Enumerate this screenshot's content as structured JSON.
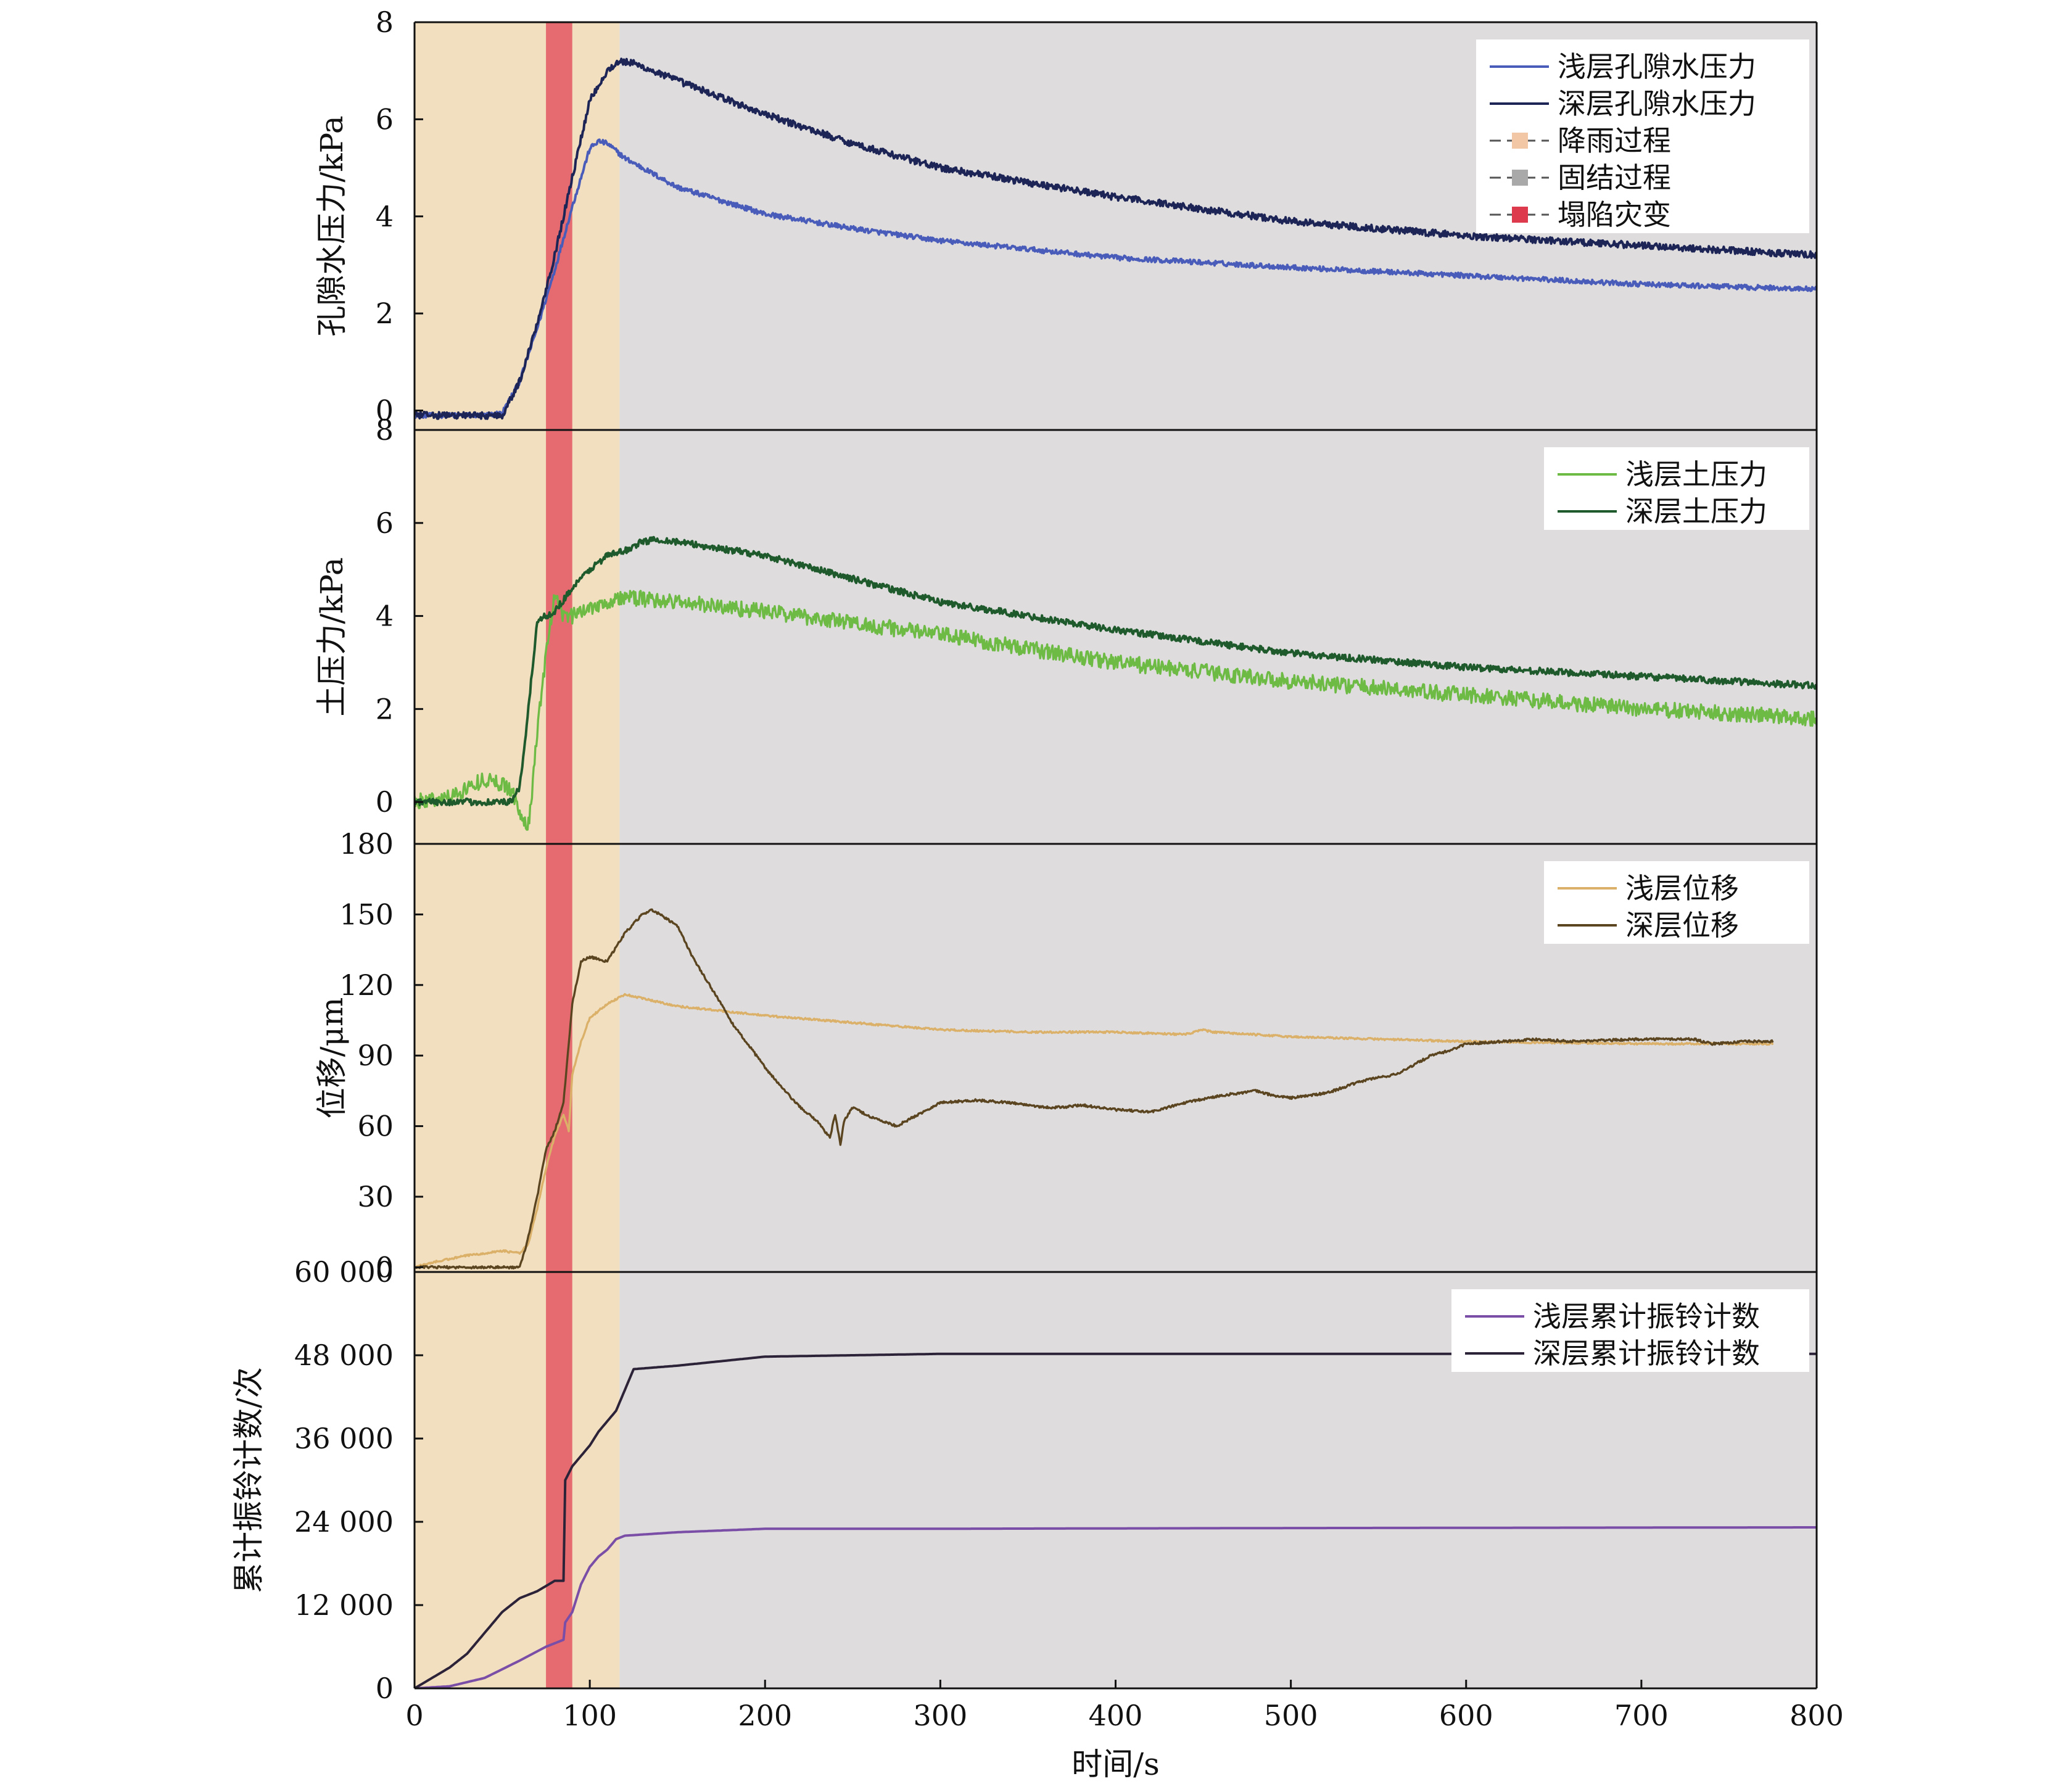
{
  "shared_x": {
    "label": "时间/s",
    "lim": [
      0,
      800
    ],
    "ticks": [
      0,
      100,
      200,
      300,
      400,
      500,
      600,
      700,
      800
    ]
  },
  "phases": {
    "rain_end": 117,
    "collapse": [
      75,
      90
    ],
    "colors": {
      "rain": "#f2dfc0",
      "consolidation": "#dedcdd",
      "collapse": "#e56b71"
    }
  },
  "chart_data": [
    {
      "type": "line",
      "ylabel": "孔隙水压力/kPa",
      "ylim": [
        -0.4,
        8
      ],
      "yticks": [
        0,
        2,
        4,
        6,
        8
      ],
      "ytick_labels": [
        "0",
        "2",
        "4",
        "6",
        "8"
      ],
      "legend": {
        "placement": "top-right",
        "entries": [
          {
            "label": "浅层孔隙水压力",
            "kind": "line",
            "color": "#4a5cba"
          },
          {
            "label": "深层孔隙水压力",
            "kind": "line",
            "color": "#1d2456"
          },
          {
            "label": "降雨过程",
            "kind": "patch",
            "color": "#f1c7a6"
          },
          {
            "label": "固结过程",
            "kind": "patch",
            "color": "#a9a9a9"
          },
          {
            "label": "塌陷灾变",
            "kind": "patch",
            "color": "#dd3a4d"
          }
        ]
      },
      "series": [
        {
          "name": "浅层孔隙水压力",
          "color": "#4a5cba",
          "noise": 0.05,
          "x": [
            0,
            40,
            50,
            60,
            70,
            80,
            90,
            100,
            105,
            110,
            120,
            150,
            200,
            250,
            300,
            400,
            500,
            600,
            700,
            800
          ],
          "y": [
            -0.1,
            -0.1,
            -0.05,
            0.6,
            1.7,
            2.9,
            4.2,
            5.4,
            5.55,
            5.5,
            5.2,
            4.6,
            4.05,
            3.75,
            3.5,
            3.15,
            2.95,
            2.78,
            2.6,
            2.5
          ]
        },
        {
          "name": "深层孔隙水压力",
          "color": "#1d2456",
          "noise": 0.07,
          "x": [
            0,
            50,
            60,
            70,
            80,
            90,
            100,
            110,
            117,
            125,
            150,
            200,
            250,
            300,
            400,
            500,
            600,
            700,
            800
          ],
          "y": [
            -0.1,
            -0.1,
            0.6,
            1.8,
            3.2,
            4.8,
            6.4,
            7.0,
            7.2,
            7.15,
            6.8,
            6.1,
            5.5,
            5.0,
            4.4,
            3.9,
            3.6,
            3.4,
            3.2
          ]
        }
      ]
    },
    {
      "type": "line",
      "ylabel": "土压力/kPa",
      "ylim": [
        -0.9,
        8
      ],
      "yticks": [
        0,
        2,
        4,
        6,
        8
      ],
      "ytick_labels": [
        "0",
        "2",
        "4",
        "6",
        "8"
      ],
      "legend": {
        "placement": "top-right",
        "entries": [
          {
            "label": "浅层土压力",
            "kind": "line",
            "color": "#6dbb45"
          },
          {
            "label": "深层土压力",
            "kind": "line",
            "color": "#1f5a2c"
          }
        ]
      },
      "series": [
        {
          "name": "浅层土压力",
          "color": "#6dbb45",
          "noise": 0.17,
          "x": [
            0,
            20,
            40,
            55,
            60,
            64,
            66,
            70,
            75,
            80,
            85,
            90,
            100,
            120,
            150,
            200,
            300,
            400,
            500,
            600,
            700,
            800
          ],
          "y": [
            0.0,
            0.1,
            0.5,
            0.3,
            -0.2,
            -0.6,
            -0.2,
            1.5,
            3.2,
            4.4,
            4.0,
            4.0,
            4.2,
            4.4,
            4.3,
            4.1,
            3.6,
            3.0,
            2.6,
            2.3,
            2.0,
            1.8
          ]
        },
        {
          "name": "深层土压力",
          "color": "#1f5a2c",
          "noise": 0.07,
          "x": [
            0,
            50,
            55,
            60,
            65,
            70,
            80,
            90,
            100,
            110,
            120,
            130,
            140,
            200,
            250,
            300,
            400,
            500,
            600,
            700,
            800
          ],
          "y": [
            0.0,
            0.0,
            0.0,
            0.3,
            2.0,
            3.9,
            4.1,
            4.6,
            5.0,
            5.3,
            5.4,
            5.6,
            5.65,
            5.3,
            4.8,
            4.3,
            3.7,
            3.2,
            2.9,
            2.7,
            2.5
          ]
        }
      ]
    },
    {
      "type": "line",
      "ylabel": "位移/μm",
      "ylim": [
        -2,
        180
      ],
      "yticks": [
        0,
        30,
        60,
        90,
        120,
        150,
        180
      ],
      "ytick_labels": [
        "0",
        "30",
        "60",
        "90",
        "120",
        "150",
        "180"
      ],
      "legend": {
        "placement": "top-right",
        "entries": [
          {
            "label": "浅层位移",
            "kind": "line",
            "color": "#dbb068"
          },
          {
            "label": "深层位移",
            "kind": "line",
            "color": "#5a4520"
          }
        ]
      },
      "series": [
        {
          "name": "浅层位移",
          "color": "#dbb068",
          "noise": 0.4,
          "x": [
            0,
            10,
            30,
            50,
            60,
            65,
            70,
            75,
            80,
            85,
            88,
            90,
            95,
            100,
            110,
            120,
            150,
            200,
            250,
            300,
            350,
            400,
            440,
            450,
            455,
            500,
            550,
            600,
            700,
            775
          ],
          "y": [
            0,
            2,
            5,
            7,
            6,
            10,
            25,
            42,
            56,
            65,
            58,
            82,
            96,
            106,
            112,
            116,
            111,
            107,
            104,
            101,
            100,
            100,
            99,
            101,
            100,
            98,
            97,
            96,
            95,
            95
          ]
        },
        {
          "name": "深层位移",
          "color": "#5a4520",
          "noise": 0.5,
          "x": [
            0,
            30,
            60,
            64,
            70,
            75,
            80,
            85,
            90,
            95,
            100,
            110,
            120,
            130,
            135,
            140,
            150,
            160,
            175,
            180,
            190,
            200,
            210,
            220,
            230,
            237,
            240,
            243,
            245,
            250,
            260,
            275,
            280,
            290,
            300,
            320,
            340,
            360,
            370,
            380,
            400,
            420,
            440,
            460,
            480,
            490,
            500,
            520,
            540,
            545,
            560,
            580,
            590,
            600,
            620,
            640,
            660,
            700,
            730,
            740,
            760,
            775
          ],
          "y": [
            0,
            0,
            0,
            10,
            30,
            50,
            58,
            70,
            112,
            130,
            132,
            130,
            142,
            150,
            152,
            150,
            145,
            130,
            112,
            105,
            95,
            85,
            76,
            68,
            62,
            55,
            65,
            52,
            62,
            68,
            64,
            60,
            62,
            66,
            70,
            71,
            70,
            68,
            68,
            69,
            67,
            66,
            70,
            73,
            75,
            73,
            72,
            74,
            79,
            80,
            82,
            90,
            92,
            95,
            96,
            97,
            96,
            97,
            97,
            95,
            96,
            96
          ]
        }
      ]
    },
    {
      "type": "line",
      "ylabel": "累计振铃计数/次",
      "ylim": [
        0,
        60000
      ],
      "yticks": [
        0,
        12000,
        24000,
        36000,
        48000,
        60000
      ],
      "ytick_labels": [
        "0",
        "12 000",
        "24 000",
        "36 000",
        "48 000",
        "60 000"
      ],
      "legend": {
        "placement": "top-right",
        "entries": [
          {
            "label": "浅层累计振铃计数",
            "kind": "line",
            "color": "#7a4ea6"
          },
          {
            "label": "深层累计振铃计数",
            "kind": "line",
            "color": "#2d2338"
          }
        ]
      },
      "series": [
        {
          "name": "浅层累计振铃计数",
          "color": "#7a4ea6",
          "noise": 0,
          "x": [
            0,
            20,
            40,
            60,
            75,
            85,
            86,
            90,
            95,
            100,
            105,
            110,
            115,
            120,
            150,
            200,
            300,
            500,
            800
          ],
          "y": [
            0,
            300,
            1500,
            4000,
            6000,
            7000,
            9500,
            11000,
            15000,
            17500,
            19000,
            20000,
            21500,
            22000,
            22500,
            23000,
            23000,
            23100,
            23200
          ]
        },
        {
          "name": "深层累计振铃计数",
          "color": "#2d2338",
          "noise": 0,
          "x": [
            0,
            10,
            20,
            30,
            40,
            50,
            60,
            70,
            80,
            85,
            86,
            90,
            100,
            105,
            110,
            115,
            120,
            125,
            150,
            200,
            300,
            500,
            800
          ],
          "y": [
            0,
            1500,
            3000,
            5000,
            8000,
            11000,
            13000,
            14000,
            15500,
            15500,
            30000,
            32000,
            35000,
            37000,
            38500,
            40000,
            43000,
            46000,
            46500,
            47800,
            48200,
            48200,
            48200
          ]
        }
      ]
    }
  ]
}
